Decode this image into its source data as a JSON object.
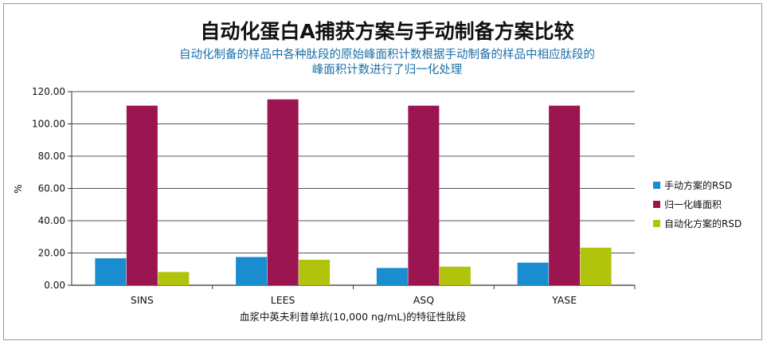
{
  "chart_data": {
    "type": "bar",
    "title": "自动化蛋白A捕获方案与手动制备方案比较",
    "subtitle_lines": [
      "自动化制备的样品中各种肽段的原始峰面积计数根据手动制备的样品中相应肽段的",
      "峰面积计数进行了归一化处理"
    ],
    "categories": [
      "SINS",
      "LEES",
      "ASQ",
      "YASE"
    ],
    "series": [
      {
        "name": "手动方案的RSD",
        "color": "#1a8cd0",
        "values": [
          16.7,
          17.5,
          10.7,
          14.0
        ]
      },
      {
        "name": "归一化峰面积",
        "color": "#9b1550",
        "values": [
          111.3,
          115.2,
          111.3,
          111.3
        ]
      },
      {
        "name": "自动化方案的RSD",
        "color": "#b2c30c",
        "values": [
          8.2,
          15.8,
          11.5,
          23.3
        ]
      }
    ],
    "ylabel": "%",
    "xlabel": "血浆中英夫利昔单抗(10,000 ng/mL)的特征性肽段",
    "ylim": [
      0,
      120
    ],
    "yticks": [
      "0.00",
      "20.00",
      "40.00",
      "60.00",
      "80.00",
      "100.00",
      "120.00"
    ],
    "legend_position": "right",
    "grid": true
  }
}
